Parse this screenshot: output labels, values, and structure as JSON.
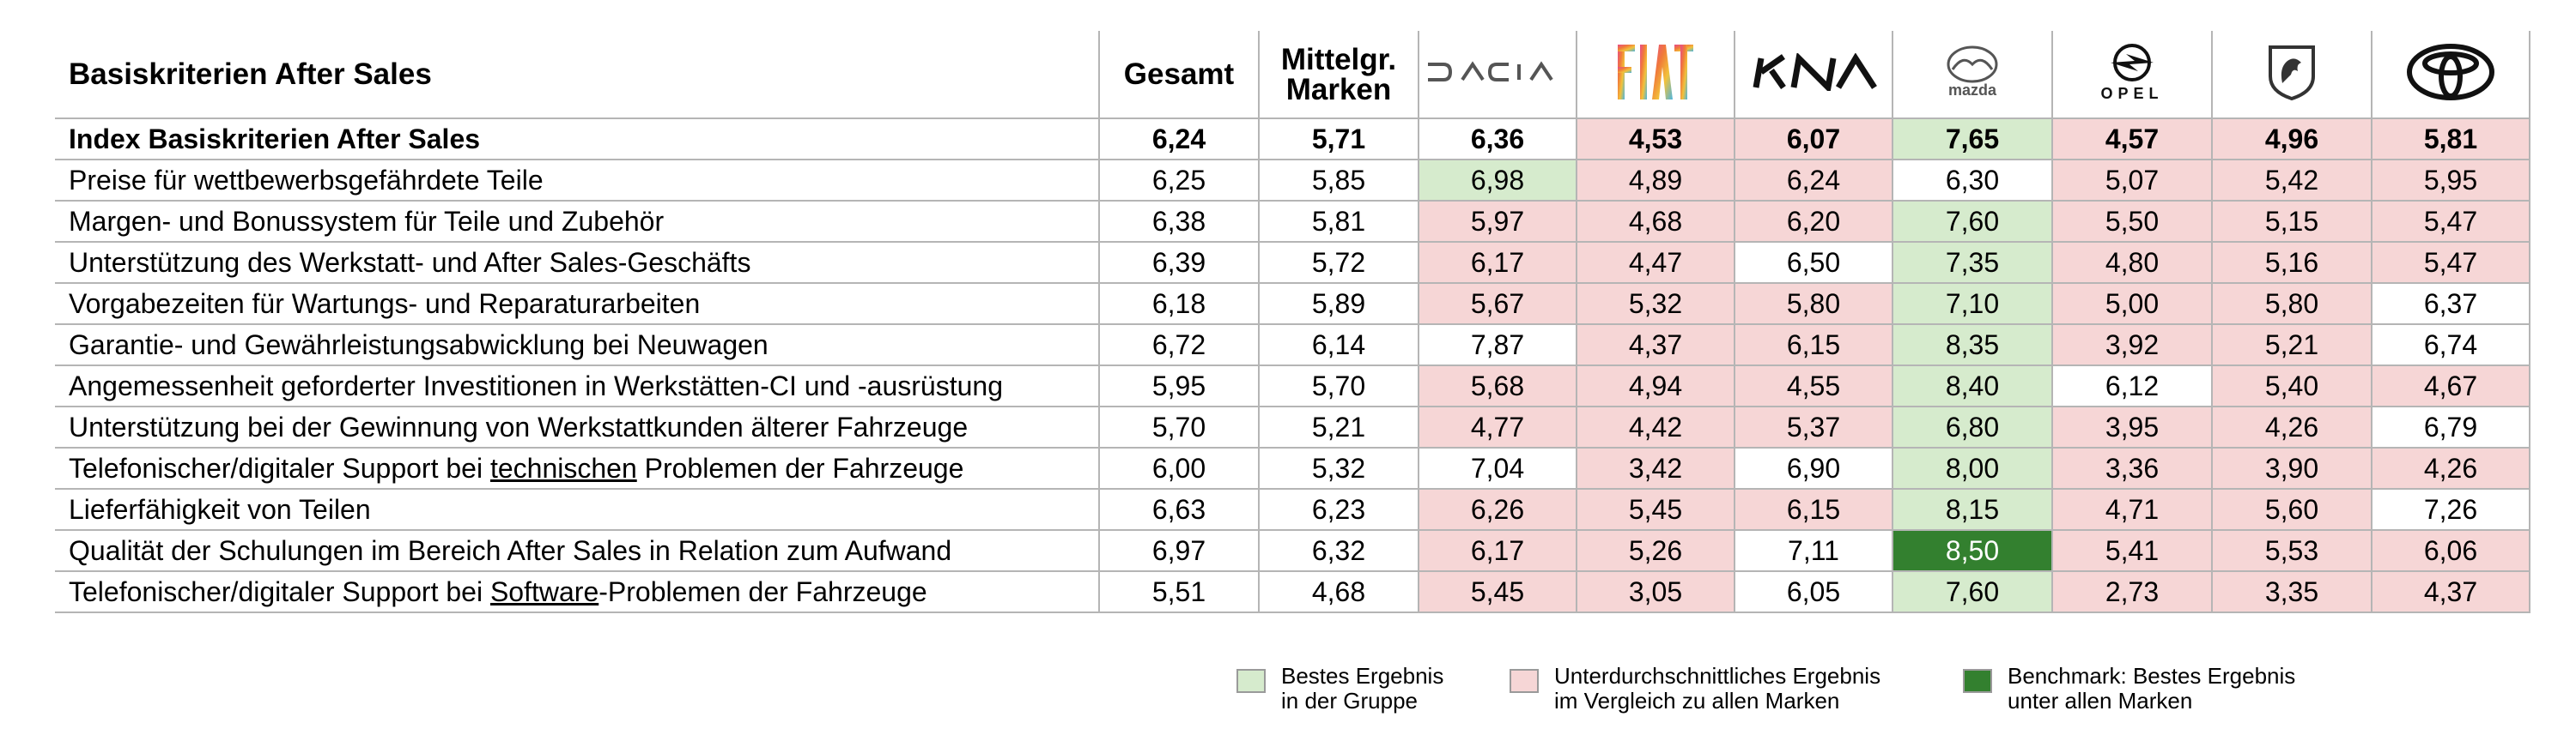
{
  "header": {
    "title": "Basiskriterien After Sales",
    "col_gesamt": "Gesamt",
    "col_mittel_line1": "Mittelgr.",
    "col_mittel_line2": "Marken"
  },
  "brands": [
    {
      "name": "DACIA",
      "icon": "dacia-logo"
    },
    {
      "name": "FIAT",
      "icon": "fiat-logo"
    },
    {
      "name": "KIA",
      "icon": "kia-logo"
    },
    {
      "name": "mazda",
      "icon": "mazda-logo"
    },
    {
      "name": "OPEL",
      "icon": "opel-logo"
    },
    {
      "name": "PEUGEOT",
      "icon": "peugeot-logo"
    },
    {
      "name": "TOYOTA",
      "icon": "toyota-logo"
    }
  ],
  "rows": [
    {
      "label": "Index Basiskriterien After Sales",
      "gesamt": "6,24",
      "mittel": "5,71",
      "brands": [
        "6,36",
        "4,53",
        "6,07",
        "7,65",
        "4,57",
        "4,96",
        "5,81"
      ],
      "colors": [
        "none",
        "red",
        "red",
        "green",
        "red",
        "red",
        "red"
      ]
    },
    {
      "label": "Preise für wettbewerbsgefährdete Teile",
      "gesamt": "6,25",
      "mittel": "5,85",
      "brands": [
        "6,98",
        "4,89",
        "6,24",
        "6,30",
        "5,07",
        "5,42",
        "5,95"
      ],
      "colors": [
        "green",
        "red",
        "red",
        "none",
        "red",
        "red",
        "red"
      ]
    },
    {
      "label": "Margen- und Bonussystem für Teile und Zubehör",
      "gesamt": "6,38",
      "mittel": "5,81",
      "brands": [
        "5,97",
        "4,68",
        "6,20",
        "7,60",
        "5,50",
        "5,15",
        "5,47"
      ],
      "colors": [
        "red",
        "red",
        "red",
        "green",
        "red",
        "red",
        "red"
      ]
    },
    {
      "label": "Unterstützung des Werkstatt- und After Sales-Geschäfts",
      "gesamt": "6,39",
      "mittel": "5,72",
      "brands": [
        "6,17",
        "4,47",
        "6,50",
        "7,35",
        "4,80",
        "5,16",
        "5,47"
      ],
      "colors": [
        "red",
        "red",
        "none",
        "green",
        "red",
        "red",
        "red"
      ]
    },
    {
      "label": "Vorgabezeiten für Wartungs- und Reparaturarbeiten",
      "gesamt": "6,18",
      "mittel": "5,89",
      "brands": [
        "5,67",
        "5,32",
        "5,80",
        "7,10",
        "5,00",
        "5,80",
        "6,37"
      ],
      "colors": [
        "red",
        "red",
        "red",
        "green",
        "red",
        "red",
        "none"
      ]
    },
    {
      "label": "Garantie- und Gewährleistungsabwicklung bei Neuwagen",
      "gesamt": "6,72",
      "mittel": "6,14",
      "brands": [
        "7,87",
        "4,37",
        "6,15",
        "8,35",
        "3,92",
        "5,21",
        "6,74"
      ],
      "colors": [
        "none",
        "red",
        "red",
        "green",
        "red",
        "red",
        "none"
      ]
    },
    {
      "label": "Angemessenheit geforderter Investitionen in Werkstätten-CI und -ausrüstung",
      "gesamt": "5,95",
      "mittel": "5,70",
      "brands": [
        "5,68",
        "4,94",
        "4,55",
        "8,40",
        "6,12",
        "5,40",
        "4,67"
      ],
      "colors": [
        "red",
        "red",
        "red",
        "green",
        "none",
        "red",
        "red"
      ]
    },
    {
      "label": "Unterstützung bei der Gewinnung von Werkstattkunden älterer Fahrzeuge",
      "gesamt": "5,70",
      "mittel": "5,21",
      "brands": [
        "4,77",
        "4,42",
        "5,37",
        "6,80",
        "3,95",
        "4,26",
        "6,79"
      ],
      "colors": [
        "red",
        "red",
        "red",
        "green",
        "red",
        "red",
        "none"
      ]
    },
    {
      "label_pre": "Telefonischer/digitaler Support bei ",
      "label_u": "technischen",
      "label_post": " Problemen der Fahrzeuge",
      "gesamt": "6,00",
      "mittel": "5,32",
      "brands": [
        "7,04",
        "3,42",
        "6,90",
        "8,00",
        "3,36",
        "3,90",
        "4,26"
      ],
      "colors": [
        "none",
        "red",
        "none",
        "green",
        "red",
        "red",
        "red"
      ]
    },
    {
      "label": "Lieferfähigkeit von Teilen",
      "gesamt": "6,63",
      "mittel": "6,23",
      "brands": [
        "6,26",
        "5,45",
        "6,15",
        "8,15",
        "4,71",
        "5,60",
        "7,26"
      ],
      "colors": [
        "red",
        "red",
        "red",
        "green",
        "red",
        "red",
        "none"
      ]
    },
    {
      "label": "Qualität der Schulungen im Bereich After Sales in Relation zum Aufwand",
      "gesamt": "6,97",
      "mittel": "6,32",
      "brands": [
        "6,17",
        "5,26",
        "7,11",
        "8,50",
        "5,41",
        "5,53",
        "6,06"
      ],
      "colors": [
        "red",
        "red",
        "none",
        "bench",
        "red",
        "red",
        "red"
      ]
    },
    {
      "label_pre": "Telefonischer/digitaler Support bei ",
      "label_u": "Software",
      "label_post": "-Problemen der Fahrzeuge",
      "gesamt": "5,51",
      "mittel": "4,68",
      "brands": [
        "5,45",
        "3,05",
        "6,05",
        "7,60",
        "2,73",
        "3,35",
        "4,37"
      ],
      "colors": [
        "red",
        "red",
        "none",
        "green",
        "red",
        "red",
        "red"
      ]
    }
  ],
  "legend": [
    {
      "line1": "Bestes Ergebnis",
      "line2": "in der Gruppe",
      "color": "#d6ebcd"
    },
    {
      "line1": "Unterdurchschnittliches Ergebnis",
      "line2": "im Vergleich zu allen Marken",
      "color": "#f6d6d6"
    },
    {
      "line1": "Benchmark: Bestes Ergebnis",
      "line2": "unter allen Marken",
      "color": "#33802f"
    }
  ]
}
